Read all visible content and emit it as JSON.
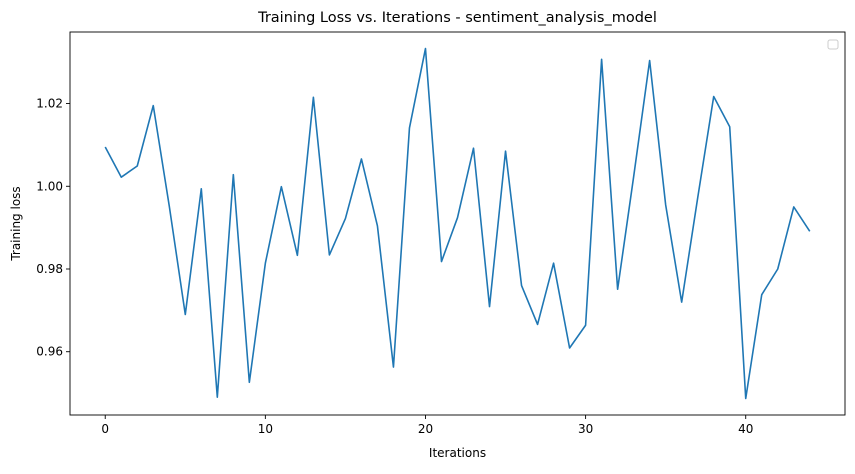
{
  "chart_data": {
    "type": "line",
    "title": "Training Loss vs. Iterations - sentiment_analysis_model",
    "xlabel": "Iterations",
    "ylabel": "Training loss",
    "xlim": [
      -2.2,
      46.2
    ],
    "ylim": [
      0.9447,
      1.0373
    ],
    "xticks": [
      0,
      10,
      20,
      30,
      40
    ],
    "xtick_labels": [
      "0",
      "10",
      "20",
      "30",
      "40"
    ],
    "yticks": [
      0.96,
      0.98,
      1.0,
      1.02
    ],
    "ytick_labels": [
      "0.96",
      "0.98",
      "1.00",
      "1.02"
    ],
    "grid": false,
    "legend": {
      "position": "top-right",
      "entries": []
    },
    "colors": {
      "line": "#1f77b4",
      "axes": "#000000",
      "legend_border": "#cccccc"
    },
    "series": [
      {
        "x": [
          0,
          1,
          2,
          3,
          4,
          5,
          6,
          7,
          8,
          9,
          10,
          11,
          12,
          13,
          14,
          15,
          16,
          17,
          18,
          19,
          20,
          21,
          22,
          23,
          24,
          25,
          26,
          27,
          28,
          29,
          30,
          31,
          32,
          33,
          34,
          35,
          36,
          37,
          38,
          39,
          40,
          41,
          42,
          43,
          44
        ],
        "values": [
          1.0095,
          1.0022,
          1.0049,
          1.0195,
          0.9952,
          0.969,
          0.9994,
          0.949,
          1.0028,
          0.9526,
          0.9814,
          0.9999,
          0.9833,
          1.0215,
          0.9834,
          0.9922,
          1.0066,
          0.9904,
          0.9563,
          1.0141,
          1.0333,
          0.9818,
          0.9924,
          1.0092,
          0.9709,
          1.0085,
          0.976,
          0.9666,
          0.9814,
          0.9609,
          0.9664,
          1.0307,
          0.9751,
          1.0023,
          1.0304,
          0.9955,
          0.972,
          0.9972,
          1.0217,
          1.0144,
          0.9487,
          0.9738,
          0.98,
          0.995,
          0.9891
        ]
      }
    ]
  }
}
